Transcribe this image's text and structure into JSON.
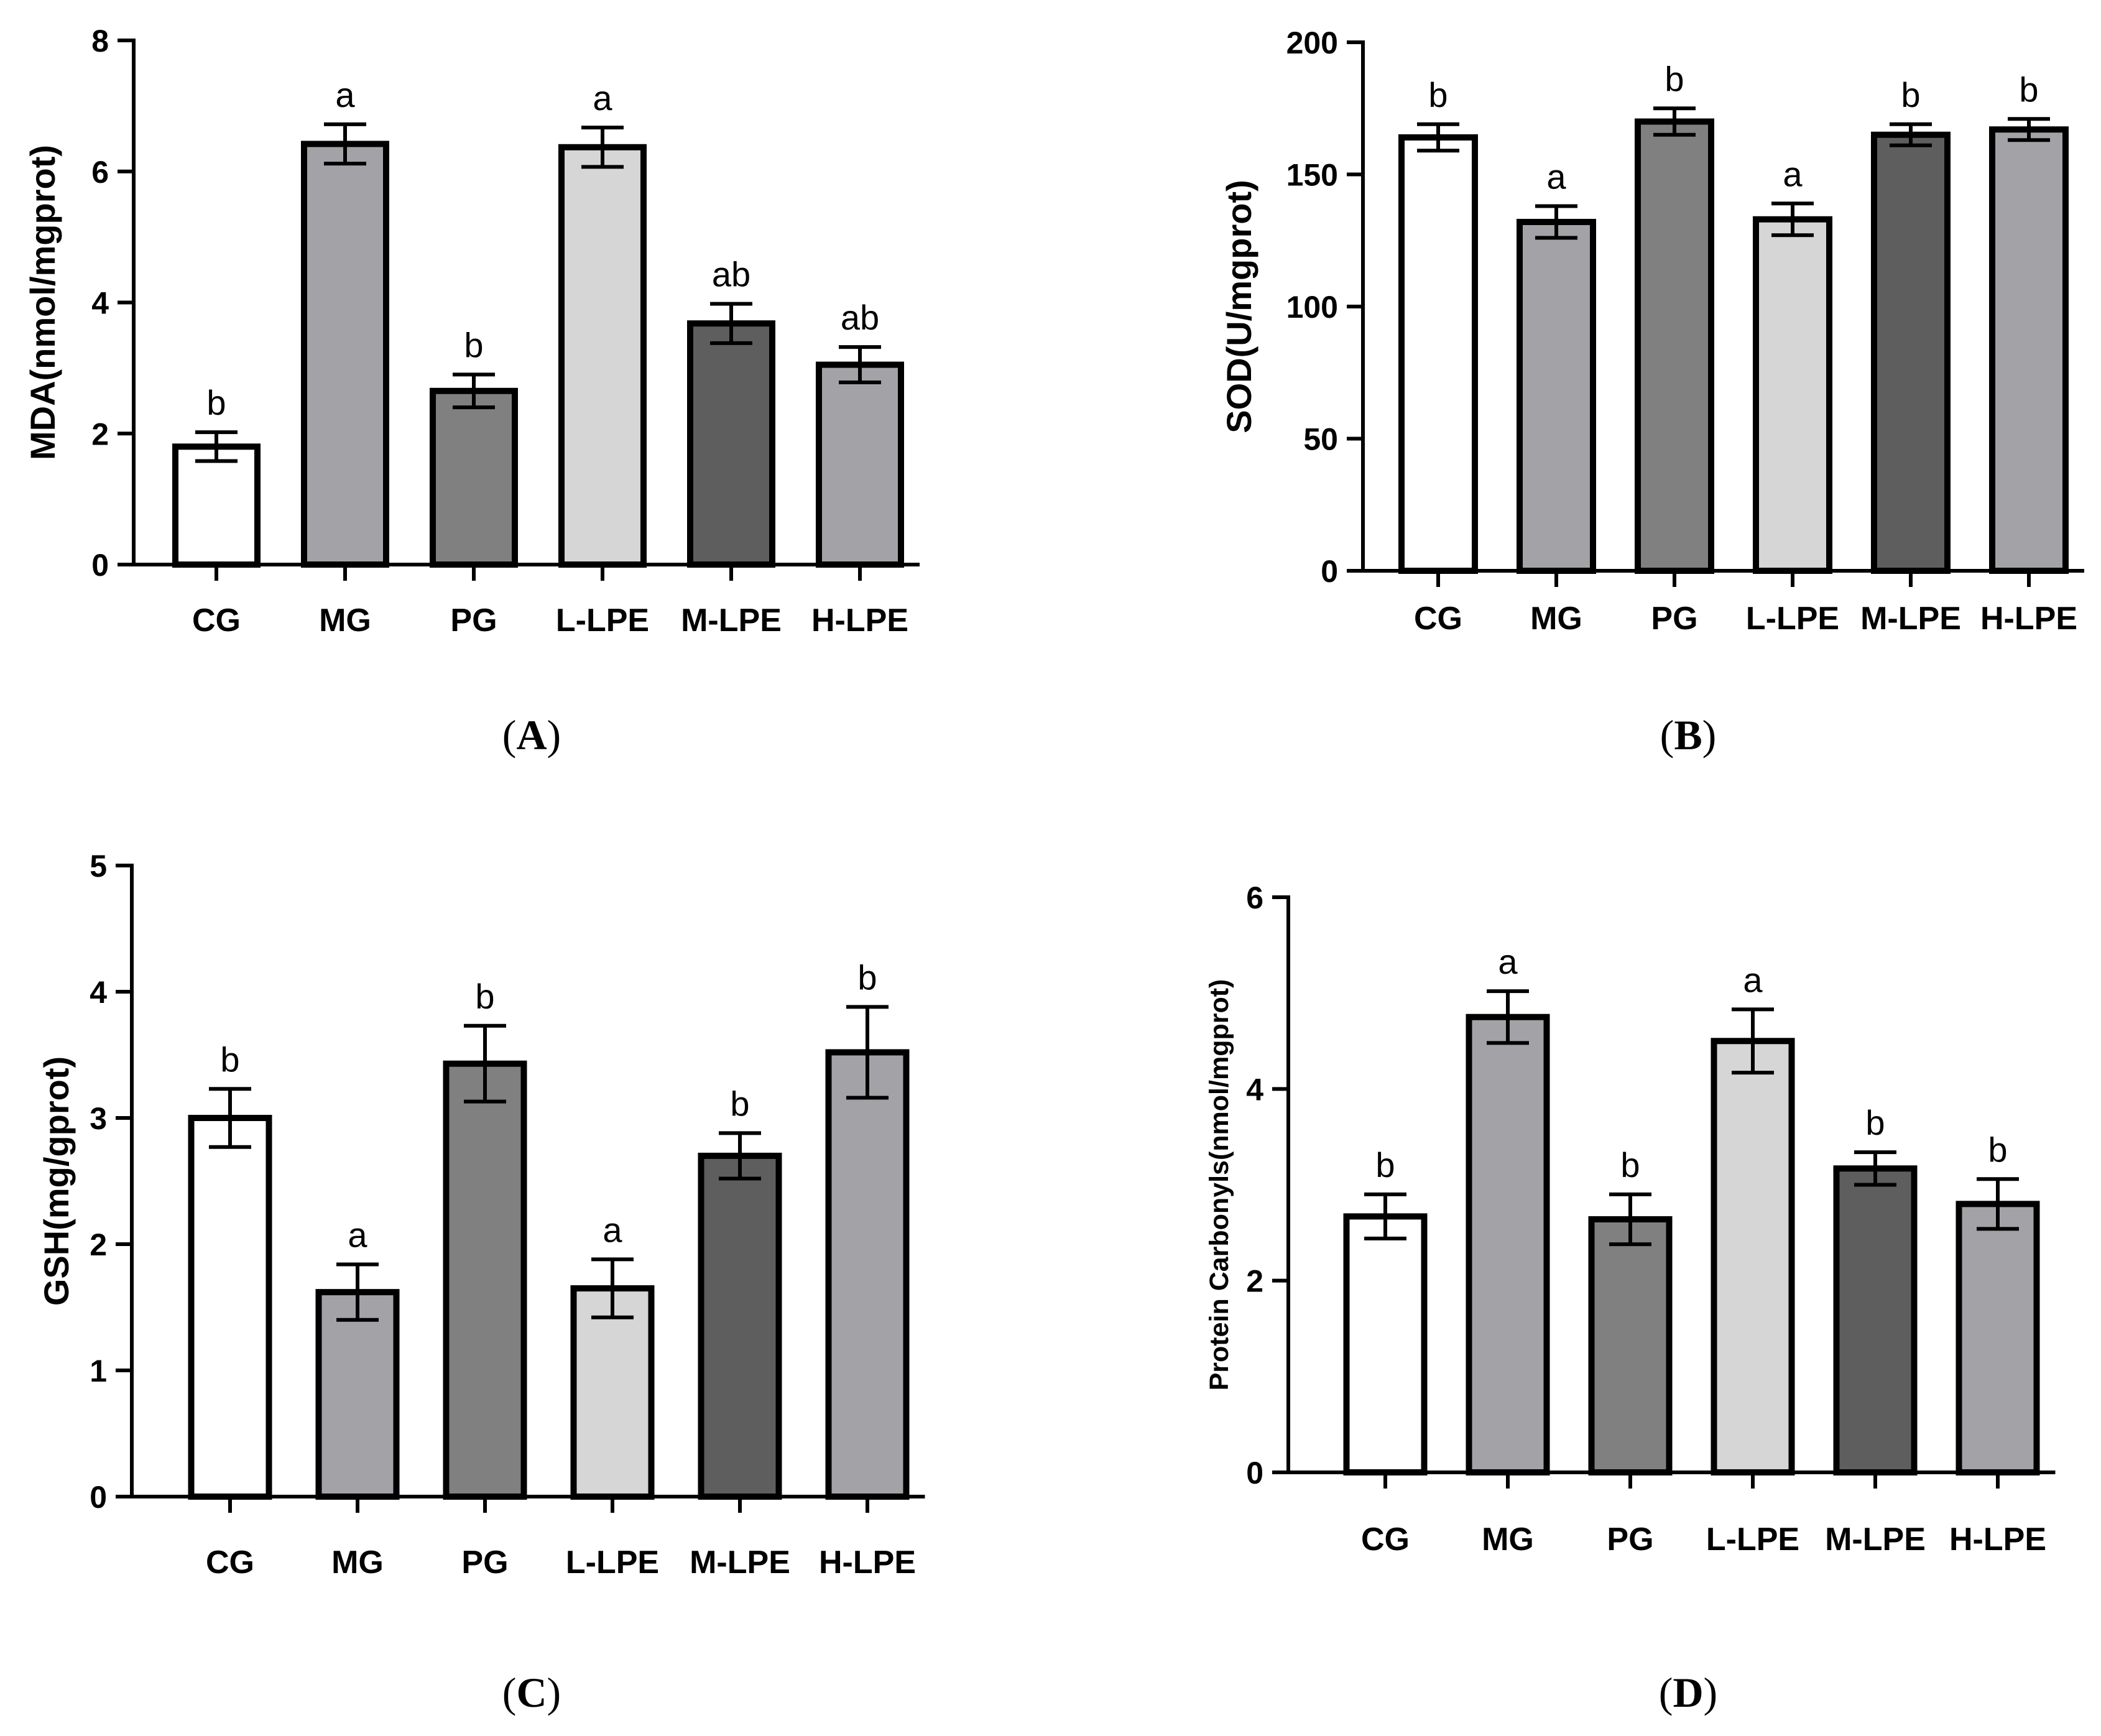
{
  "colors": {
    "axis": "#000000",
    "bar_fills": [
      "#ffffff",
      "#a3a3a7",
      "#808080",
      "#d6d6d6",
      "#5e5e5e",
      "#a3a3a7"
    ]
  },
  "chart_data": [
    {
      "panel": "A",
      "type": "bar",
      "ylabel": "MDA(nmol/mgprot)",
      "categories": [
        "CG",
        "MG",
        "PG",
        "L-LPE",
        "M-LPE",
        "H-LPE"
      ],
      "values": [
        1.8,
        6.42,
        2.65,
        6.37,
        3.68,
        3.05
      ],
      "errors": [
        0.22,
        0.3,
        0.25,
        0.3,
        0.3,
        0.27
      ],
      "significance": [
        "b",
        "a",
        "b",
        "a",
        "ab",
        "ab"
      ],
      "ylim": [
        0,
        8
      ],
      "yticks": [
        0,
        2,
        4,
        6,
        8
      ]
    },
    {
      "panel": "B",
      "type": "bar",
      "ylabel": "SOD(U/mgprot)",
      "categories": [
        "CG",
        "MG",
        "PG",
        "L-LPE",
        "M-LPE",
        "H-LPE"
      ],
      "values": [
        164,
        132,
        170,
        133,
        165,
        167
      ],
      "errors": [
        5,
        6,
        5,
        6,
        4,
        4
      ],
      "significance": [
        "b",
        "a",
        "b",
        "a",
        "b",
        "b"
      ],
      "ylim": [
        0,
        200
      ],
      "yticks": [
        0,
        50,
        100,
        150,
        200
      ]
    },
    {
      "panel": "C",
      "type": "bar",
      "ylabel": "GSH(mg/gprot)",
      "categories": [
        "CG",
        "MG",
        "PG",
        "L-LPE",
        "M-LPE",
        "H-LPE"
      ],
      "values": [
        3.0,
        1.62,
        3.43,
        1.65,
        2.7,
        3.52
      ],
      "errors": [
        0.23,
        0.22,
        0.3,
        0.23,
        0.18,
        0.36
      ],
      "significance": [
        "b",
        "a",
        "b",
        "a",
        "b",
        "b"
      ],
      "ylim": [
        0,
        5
      ],
      "yticks": [
        0,
        1,
        2,
        3,
        4,
        5
      ]
    },
    {
      "panel": "D",
      "type": "bar",
      "ylabel": "Protein Carbonyls(nmol/mgprot)",
      "categories": [
        "CG",
        "MG",
        "PG",
        "L-LPE",
        "M-LPE",
        "H-LPE"
      ],
      "values": [
        2.67,
        4.75,
        2.64,
        4.5,
        3.17,
        2.8
      ],
      "errors": [
        0.23,
        0.27,
        0.26,
        0.33,
        0.17,
        0.26
      ],
      "significance": [
        "b",
        "a",
        "b",
        "a",
        "b",
        "b"
      ],
      "ylim": [
        0,
        6
      ],
      "yticks": [
        0,
        2,
        4,
        6
      ]
    }
  ]
}
